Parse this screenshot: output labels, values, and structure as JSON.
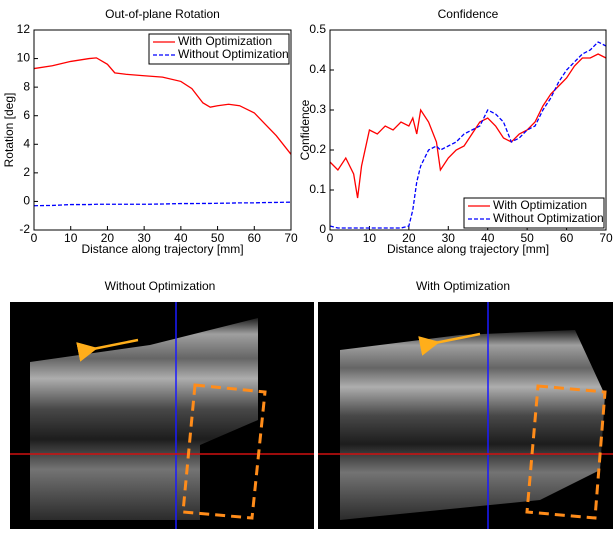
{
  "chart_data": [
    {
      "type": "line",
      "title": "Out-of-plane Rotation",
      "x_label": "Distance along trajectory [mm]",
      "y_label": "Rotation [deg]",
      "x": [
        0,
        5,
        10,
        15,
        17,
        20,
        22,
        25,
        30,
        35,
        40,
        43,
        46,
        48,
        50,
        53,
        56,
        60,
        63,
        66,
        70
      ],
      "series": [
        {
          "name": "With Optimization",
          "color": "#ff0000",
          "line_style": "solid",
          "values": [
            9.3,
            9.5,
            9.8,
            10.0,
            10.05,
            9.6,
            9.0,
            8.9,
            8.8,
            8.7,
            8.4,
            7.9,
            6.9,
            6.6,
            6.7,
            6.8,
            6.7,
            6.2,
            5.4,
            4.6,
            3.3
          ]
        },
        {
          "name": "Without Optimization",
          "color": "#0000ff",
          "line_style": "dashed",
          "values": [
            -0.3,
            -0.28,
            -0.22,
            -0.22,
            -0.2,
            -0.2,
            -0.2,
            -0.2,
            -0.2,
            -0.18,
            -0.15,
            -0.15,
            -0.14,
            -0.14,
            -0.13,
            -0.12,
            -0.1,
            -0.1,
            -0.08,
            -0.07,
            -0.05
          ]
        }
      ],
      "xlim": [
        0,
        70
      ],
      "xticks": [
        0,
        10,
        20,
        30,
        40,
        50,
        60,
        70
      ],
      "ylim": [
        -2,
        12
      ],
      "yticks": [
        -2,
        0,
        2,
        4,
        6,
        8,
        10,
        12
      ],
      "legend": "upper-right"
    },
    {
      "type": "line",
      "title": "Confidence",
      "x_label": "Distance along trajectory [mm]",
      "y_label": "Confidence",
      "x": [
        0,
        2,
        4,
        6,
        7,
        8,
        10,
        12,
        14,
        16,
        18,
        20,
        21,
        22,
        23,
        25,
        27,
        28,
        30,
        32,
        34,
        36,
        38,
        40,
        42,
        44,
        46,
        48,
        50,
        52,
        54,
        56,
        58,
        60,
        62,
        64,
        66,
        68,
        70
      ],
      "series": [
        {
          "name": "With Optimization",
          "color": "#ff0000",
          "line_style": "solid",
          "values": [
            0.17,
            0.15,
            0.18,
            0.14,
            0.08,
            0.16,
            0.25,
            0.24,
            0.26,
            0.25,
            0.27,
            0.26,
            0.28,
            0.24,
            0.3,
            0.27,
            0.22,
            0.15,
            0.18,
            0.2,
            0.21,
            0.24,
            0.27,
            0.28,
            0.26,
            0.23,
            0.22,
            0.24,
            0.25,
            0.27,
            0.31,
            0.34,
            0.36,
            0.38,
            0.41,
            0.43,
            0.43,
            0.44,
            0.43
          ]
        },
        {
          "name": "Without Optimization",
          "color": "#0000ff",
          "line_style": "dashed",
          "values": [
            0.01,
            0.005,
            0.005,
            0.005,
            0.005,
            0.005,
            0.005,
            0.005,
            0.005,
            0.005,
            0.005,
            0.01,
            0.05,
            0.12,
            0.16,
            0.2,
            0.21,
            0.2,
            0.21,
            0.22,
            0.24,
            0.25,
            0.26,
            0.3,
            0.29,
            0.27,
            0.22,
            0.23,
            0.25,
            0.26,
            0.3,
            0.33,
            0.37,
            0.4,
            0.42,
            0.44,
            0.45,
            0.47,
            0.46
          ]
        }
      ],
      "xlim": [
        0,
        70
      ],
      "xticks": [
        0,
        10,
        20,
        30,
        40,
        50,
        60,
        70
      ],
      "ylim": [
        0,
        0.5
      ],
      "yticks": [
        0,
        0.1,
        0.2,
        0.3,
        0.4,
        0.5
      ],
      "legend": "lower-right"
    }
  ],
  "panels": [
    {
      "title": "Without Optimization"
    },
    {
      "title": "With Optimization"
    }
  ]
}
